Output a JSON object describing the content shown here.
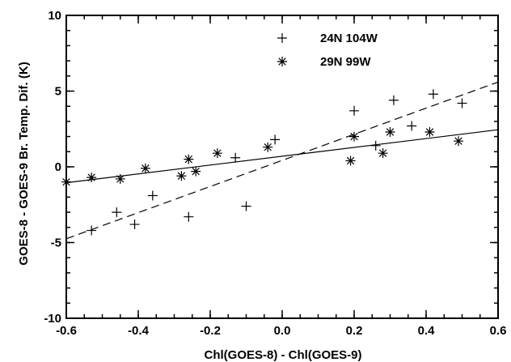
{
  "chart_data": {
    "type": "scatter",
    "xlabel": "Chl(GOES-8) - Chl(GOES-9)",
    "ylabel": "GOES-8 - GOES-9 Br. Temp. Dif. (K)",
    "xlim": [
      -0.6,
      0.6
    ],
    "ylim": [
      -10,
      10
    ],
    "xticks": [
      -0.6,
      -0.4,
      -0.2,
      0.0,
      0.2,
      0.4,
      0.6
    ],
    "xtick_labels": [
      "-0.6",
      "-0.4",
      "-0.2",
      "0.0",
      "0.2",
      "0.4",
      "0.6"
    ],
    "yticks": [
      -10,
      -5,
      0,
      5,
      10
    ],
    "ytick_labels": [
      "-10",
      "-5",
      "0",
      "5",
      "10"
    ],
    "grid": false,
    "legend_position": "top-center",
    "series": [
      {
        "name": "24N 104W",
        "marker": "plus",
        "fit_style": "dashed",
        "fit": [
          [
            -0.6,
            -4.75
          ],
          [
            0.6,
            5.6
          ]
        ],
        "points": [
          [
            -0.53,
            -4.2
          ],
          [
            -0.46,
            -3.0
          ],
          [
            -0.41,
            -3.8
          ],
          [
            -0.36,
            -1.9
          ],
          [
            -0.26,
            -3.3
          ],
          [
            -0.1,
            -2.6
          ],
          [
            -0.13,
            0.6
          ],
          [
            -0.02,
            1.8
          ],
          [
            0.2,
            3.7
          ],
          [
            0.26,
            1.4
          ],
          [
            0.31,
            4.4
          ],
          [
            0.36,
            2.7
          ],
          [
            0.42,
            4.8
          ],
          [
            0.5,
            4.2
          ]
        ]
      },
      {
        "name": "29N 99W",
        "marker": "asterisk",
        "fit_style": "solid",
        "fit": [
          [
            -0.6,
            -1.05
          ],
          [
            0.6,
            2.45
          ]
        ],
        "points": [
          [
            -0.6,
            -1.0
          ],
          [
            -0.53,
            -0.7
          ],
          [
            -0.45,
            -0.8
          ],
          [
            -0.38,
            -0.1
          ],
          [
            -0.28,
            -0.6
          ],
          [
            -0.26,
            0.5
          ],
          [
            -0.24,
            -0.3
          ],
          [
            -0.18,
            0.9
          ],
          [
            -0.04,
            1.3
          ],
          [
            0.19,
            0.4
          ],
          [
            0.2,
            2.0
          ],
          [
            0.28,
            0.9
          ],
          [
            0.3,
            2.3
          ],
          [
            0.41,
            2.3
          ],
          [
            0.49,
            1.7
          ]
        ]
      }
    ]
  }
}
